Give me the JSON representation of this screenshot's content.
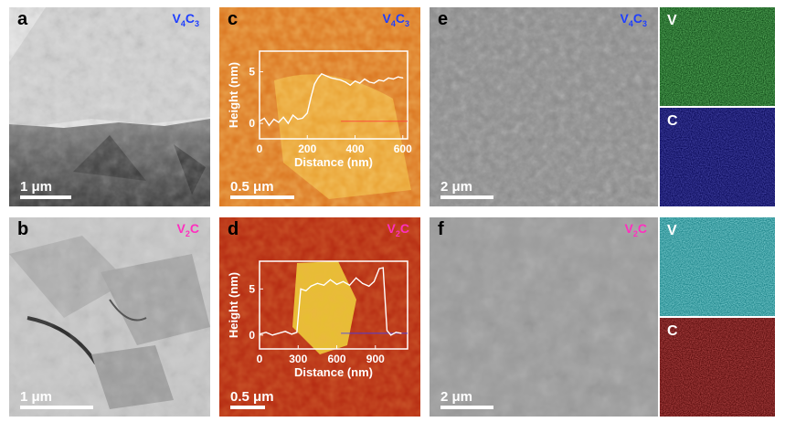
{
  "panels": {
    "a": {
      "letter": "a",
      "composition": "V4C3",
      "composition_main": "V",
      "composition_sub": "4",
      "composition_tail": "C",
      "composition_sub2": "3",
      "scale": "1 μm"
    },
    "b": {
      "letter": "b",
      "composition_main": "V",
      "composition_sub": "2",
      "composition_tail": "C",
      "scale": "1 μm"
    },
    "c": {
      "letter": "c",
      "composition_main": "V",
      "composition_sub": "4",
      "composition_tail": "C",
      "composition_sub2": "3",
      "scale": "0.5 μm"
    },
    "d": {
      "letter": "d",
      "composition_main": "V",
      "composition_sub": "2",
      "composition_tail": "C",
      "scale": "0.5 μm"
    },
    "e": {
      "letter": "e",
      "composition_main": "V",
      "composition_sub": "4",
      "composition_tail": "C",
      "composition_sub2": "3",
      "scale": "2 μm",
      "map_v": "V",
      "map_c": "C"
    },
    "f": {
      "letter": "f",
      "composition_main": "V",
      "composition_sub": "2",
      "composition_tail": "C",
      "scale": "2 μm",
      "map_v": "V",
      "map_c": "C"
    }
  },
  "colors": {
    "v4c3_label": "#1f3fff",
    "v2c_label": "#ff2fbf",
    "afm_c_bg": "#d9701a",
    "afm_d_bg": "#b3260f",
    "eds_v_green": "#1a8a2a",
    "eds_c_blue": "#14148a",
    "eds_v_cyan": "#25c7d0",
    "eds_c_red": "#a01818"
  },
  "chart_data": [
    {
      "type": "line",
      "panel": "c",
      "xlabel": "Distance (nm)",
      "ylabel": "Height (nm)",
      "xticks": [
        "0",
        "200",
        "400",
        "600"
      ],
      "yticks": [
        "0",
        "5"
      ],
      "xlim": [
        0,
        620
      ],
      "ylim": [
        -1.5,
        7
      ],
      "series": [
        {
          "x": [
            0,
            20,
            40,
            60,
            80,
            100,
            120,
            140,
            160,
            180,
            200,
            215,
            230,
            245,
            260,
            280,
            300,
            320,
            340,
            360,
            380,
            400,
            420,
            440,
            460,
            480,
            500,
            520,
            540,
            560,
            580,
            600
          ],
          "values": [
            0.2,
            0.5,
            -0.2,
            0.4,
            0.1,
            0.6,
            0.0,
            0.8,
            0.4,
            0.5,
            1.0,
            2.5,
            3.8,
            4.4,
            4.8,
            4.6,
            4.4,
            4.3,
            4.2,
            4.0,
            3.7,
            4.1,
            3.9,
            4.3,
            4.0,
            3.9,
            4.2,
            4.1,
            4.4,
            4.3,
            4.5,
            4.4
          ]
        }
      ]
    },
    {
      "type": "line",
      "panel": "d",
      "xlabel": "Distance (nm)",
      "ylabel": "Height (nm)",
      "xticks": [
        "0",
        "300",
        "600",
        "900"
      ],
      "yticks": [
        "0",
        "5"
      ],
      "xlim": [
        0,
        1150
      ],
      "ylim": [
        -1.5,
        8
      ],
      "series": [
        {
          "x": [
            0,
            50,
            100,
            150,
            200,
            250,
            290,
            320,
            360,
            400,
            450,
            500,
            550,
            600,
            650,
            700,
            750,
            800,
            850,
            890,
            930,
            960,
            990,
            1020,
            1060,
            1100
          ],
          "values": [
            0.1,
            0.3,
            0.0,
            0.2,
            0.4,
            0.1,
            0.3,
            5.0,
            4.8,
            5.3,
            5.6,
            5.4,
            6.0,
            5.5,
            5.8,
            5.4,
            6.2,
            5.6,
            5.3,
            5.8,
            7.2,
            7.3,
            0.5,
            0.0,
            0.3,
            0.2
          ]
        }
      ]
    }
  ]
}
